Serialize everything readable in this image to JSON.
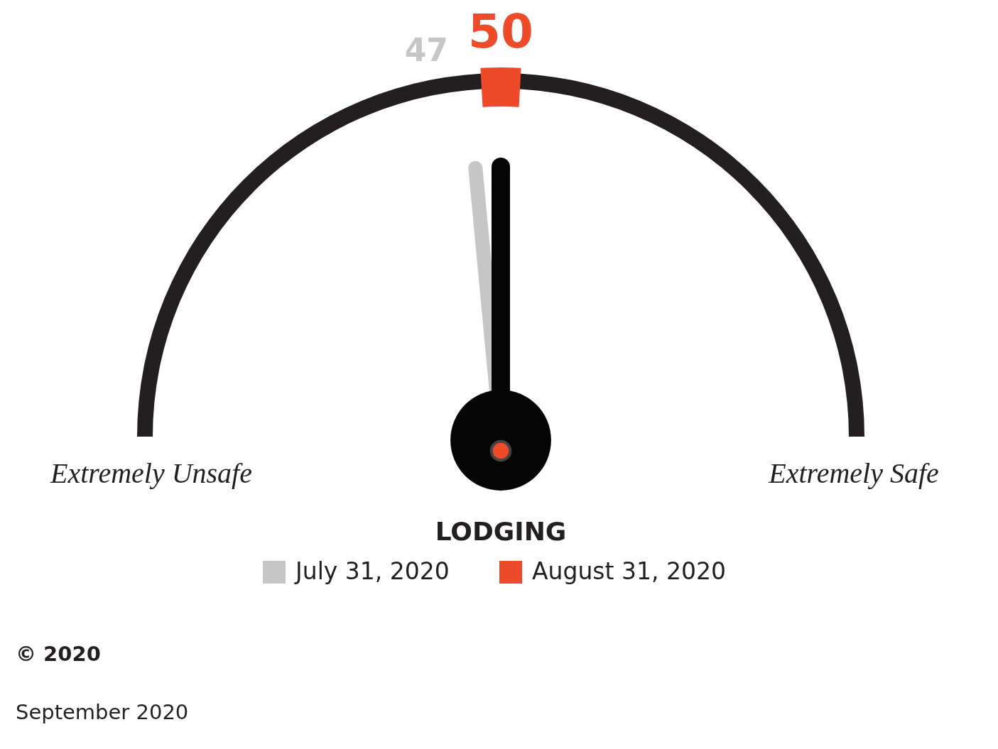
{
  "chart_data": {
    "type": "other",
    "title": "LODGING",
    "categories": [
      "July 31, 2020",
      "August 31, 2020"
    ],
    "values": [
      47,
      50
    ],
    "colors": [
      "#c6c6c6",
      "#ee4b2b"
    ],
    "data_labels": true,
    "annotations": [
      "Extremely Unsafe",
      "Extremely Safe",
      "© 2020",
      "September 2020"
    ]
  }
}
